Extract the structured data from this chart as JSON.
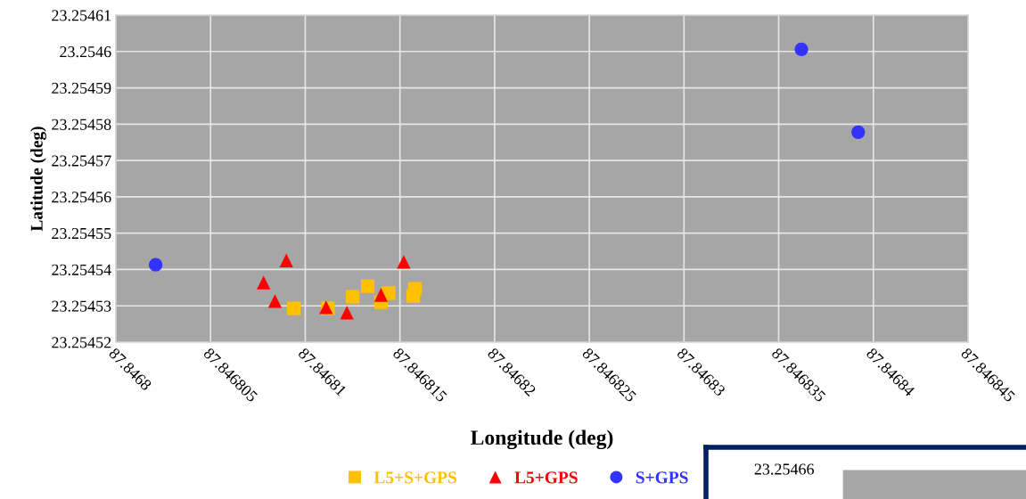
{
  "chart_data": [
    {
      "type": "scatter",
      "xlabel": "Longitude (deg)",
      "ylabel": "Latitude (deg)",
      "xlim": [
        87.8468,
        87.846845
      ],
      "xticks": [
        87.8468,
        87.846805,
        87.84681,
        87.846815,
        87.84682,
        87.846825,
        87.84683,
        87.846835,
        87.84684,
        87.846845
      ],
      "ylim": [
        23.25452,
        23.25461
      ],
      "yticks": [
        23.25452,
        23.25453,
        23.25454,
        23.25455,
        23.25456,
        23.25457,
        23.25458,
        23.25459,
        23.2546,
        23.25461
      ],
      "grid": true,
      "legend": "bottom",
      "series": [
        {
          "name": "L5+S+GPS",
          "color": "#ffc000",
          "marker": "square",
          "x": [
            87.8468094,
            87.8468112,
            87.8468125,
            87.8468133,
            87.8468144,
            87.846814,
            87.8468158,
            87.8468157
          ],
          "values": [
            23.2545293,
            23.2545293,
            23.2545325,
            23.2545354,
            23.2545335,
            23.254531,
            23.2545347,
            23.2545327
          ]
        },
        {
          "name": "L5+GPS",
          "color": "#ff0000",
          "marker": "triangle",
          "x": [
            87.846809,
            87.8468078,
            87.8468084,
            87.8468111,
            87.8468122,
            87.846814,
            87.8468152
          ],
          "values": [
            23.2545425,
            23.2545364,
            23.2545313,
            23.2545296,
            23.2545281,
            23.254533,
            23.2545421
          ]
        },
        {
          "name": "S+GPS",
          "color": "#3333ff",
          "marker": "circle",
          "x": [
            87.8468021,
            87.8468362,
            87.8468392
          ],
          "values": [
            23.2545413,
            23.2546006,
            23.2545778
          ]
        }
      ]
    },
    {
      "type": "other",
      "annotations": [
        "23.25466"
      ]
    }
  ]
}
